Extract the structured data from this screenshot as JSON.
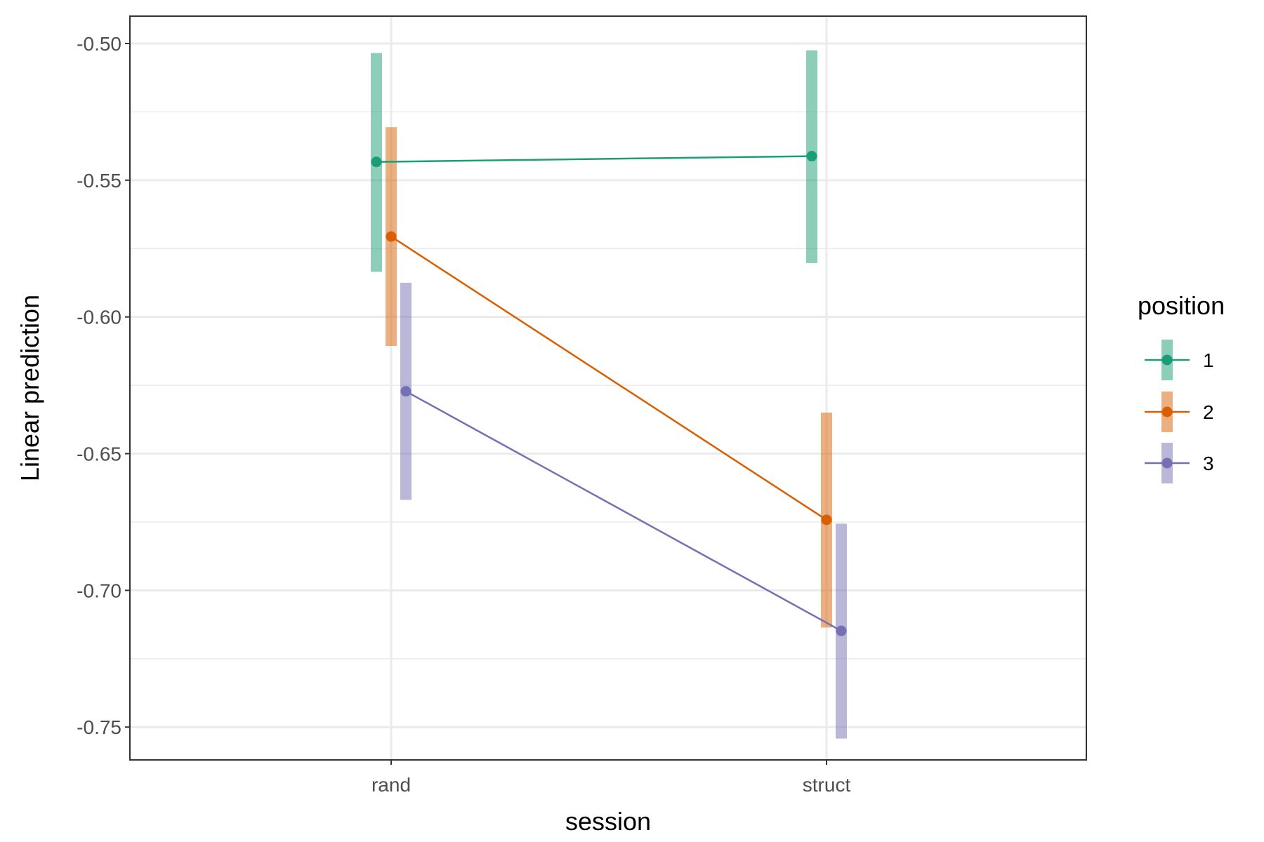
{
  "chart_data": {
    "type": "line",
    "xlabel": "session",
    "ylabel": "Linear prediction",
    "categories": [
      "rand",
      "struct"
    ],
    "ylim": [
      -0.762,
      -0.49
    ],
    "yticks": [
      "-0.50",
      "-0.55",
      "-0.60",
      "-0.65",
      "-0.70",
      "-0.75"
    ],
    "grid": true,
    "legend": {
      "title": "position",
      "placement": "right"
    },
    "series": [
      {
        "name": "1",
        "color": "#1b9e77",
        "values": [
          -0.5433,
          -0.5412
        ],
        "ci_lower": [
          -0.5835,
          -0.5803
        ],
        "ci_upper": [
          -0.5035,
          -0.5025
        ]
      },
      {
        "name": "2",
        "color": "#d95f02",
        "values": [
          -0.5706,
          -0.6742
        ],
        "ci_lower": [
          -0.6106,
          -0.7136
        ],
        "ci_upper": [
          -0.5306,
          -0.635
        ]
      },
      {
        "name": "3",
        "color": "#7570b3",
        "values": [
          -0.6272,
          -0.7148
        ],
        "ci_lower": [
          -0.6669,
          -0.7542
        ],
        "ci_upper": [
          -0.5875,
          -0.6756
        ]
      }
    ]
  }
}
